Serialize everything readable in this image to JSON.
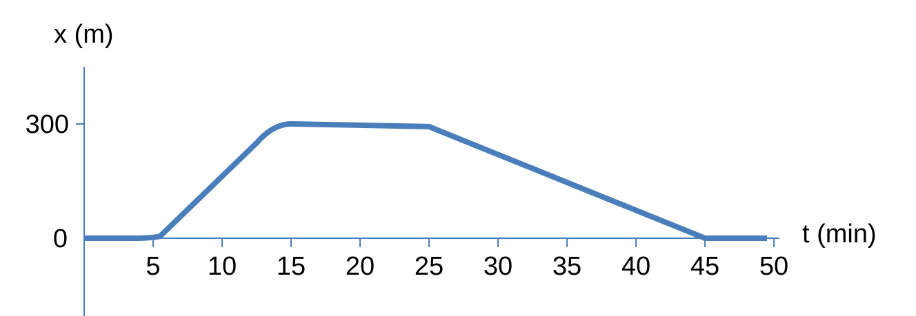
{
  "chart_data": {
    "type": "line",
    "title": "",
    "xlabel": "t (min)",
    "ylabel": "x (m)",
    "x_ticks": [
      5,
      10,
      15,
      20,
      25,
      30,
      35,
      40,
      45,
      50
    ],
    "y_ticks": [
      0,
      300
    ],
    "xlim": [
      0,
      50
    ],
    "ylim": [
      0,
      300
    ],
    "grid": false,
    "series_color": "#4a7ebb",
    "axis_color": "#4a7ebb",
    "series": [
      {
        "points": [
          {
            "x": 0,
            "y": 0
          },
          {
            "x": 3.5,
            "y": 0
          },
          {
            "x": 5.5,
            "y": 5
          },
          {
            "x": 12.5,
            "y": 250
          },
          {
            "x": 15,
            "y": 300
          },
          {
            "x": 25,
            "y": 293
          },
          {
            "x": 45,
            "y": 0
          },
          {
            "x": 49.5,
            "y": 0
          }
        ]
      }
    ]
  }
}
